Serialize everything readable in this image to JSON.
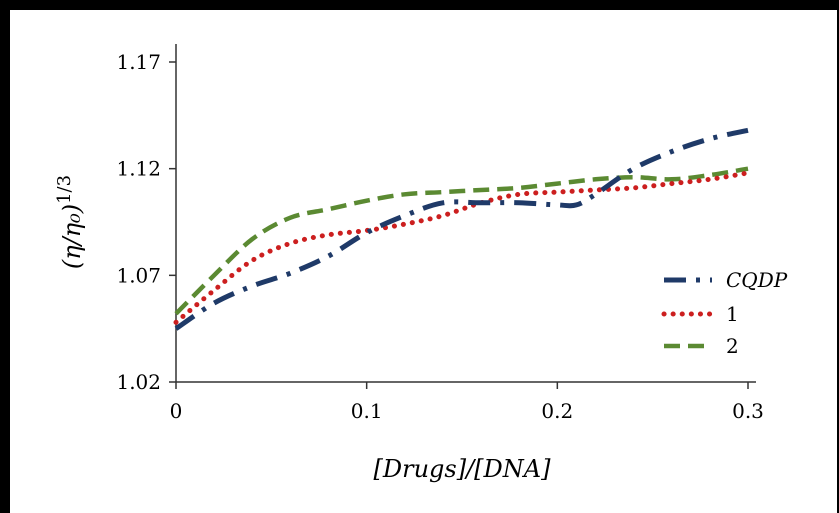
{
  "chart_data": {
    "type": "line",
    "title": "",
    "xlabel": "[Drugs]/[DNA]",
    "ylabel": "(η/η₀)^1/3",
    "xlim": [
      0,
      0.3
    ],
    "ylim": [
      1.02,
      1.17
    ],
    "x_ticks": [
      0,
      0.1,
      0.2,
      0.3
    ],
    "x_tick_labels": [
      "0",
      "0.1",
      "0.2",
      "0.3"
    ],
    "y_ticks": [
      1.02,
      1.07,
      1.12,
      1.17
    ],
    "y_tick_labels": [
      "1.02",
      "1.07",
      "1.12",
      "1.17"
    ],
    "grid": false,
    "legend_position": "right",
    "series": [
      {
        "name": "CQDP",
        "color": "#1f3a68",
        "style": "dash-dot",
        "x": [
          0,
          0.02,
          0.04,
          0.06,
          0.08,
          0.1,
          0.12,
          0.14,
          0.16,
          0.18,
          0.2,
          0.21,
          0.22,
          0.24,
          0.26,
          0.28,
          0.3
        ],
        "y": [
          1.045,
          1.057,
          1.065,
          1.071,
          1.079,
          1.09,
          1.098,
          1.104,
          1.104,
          1.104,
          1.103,
          1.103,
          1.108,
          1.12,
          1.128,
          1.134,
          1.138
        ]
      },
      {
        "name": "1",
        "color": "#cc1f1f",
        "style": "dotted",
        "x": [
          0,
          0.02,
          0.04,
          0.06,
          0.08,
          0.1,
          0.12,
          0.14,
          0.16,
          0.18,
          0.2,
          0.22,
          0.24,
          0.26,
          0.28,
          0.3
        ],
        "y": [
          1.048,
          1.063,
          1.077,
          1.085,
          1.089,
          1.091,
          1.094,
          1.098,
          1.104,
          1.108,
          1.109,
          1.11,
          1.111,
          1.113,
          1.115,
          1.118
        ]
      },
      {
        "name": "2",
        "color": "#5b8a32",
        "style": "dashed",
        "x": [
          0,
          0.02,
          0.04,
          0.06,
          0.08,
          0.1,
          0.12,
          0.14,
          0.16,
          0.18,
          0.2,
          0.22,
          0.24,
          0.26,
          0.28,
          0.3
        ],
        "y": [
          1.052,
          1.07,
          1.087,
          1.097,
          1.101,
          1.105,
          1.108,
          1.109,
          1.11,
          1.111,
          1.113,
          1.115,
          1.116,
          1.115,
          1.117,
          1.12
        ]
      }
    ]
  }
}
